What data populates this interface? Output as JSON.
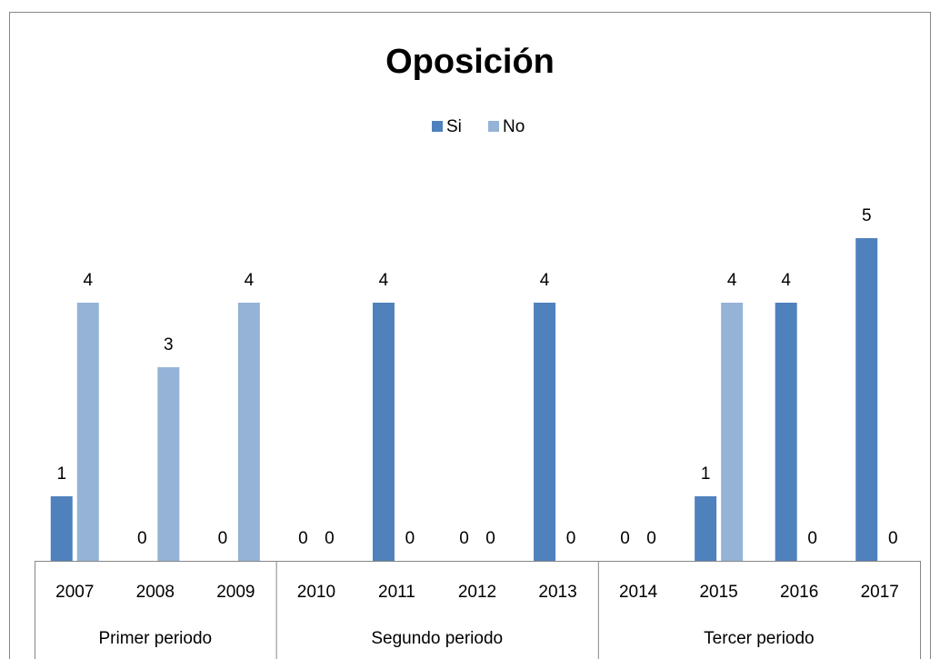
{
  "chart_data": {
    "type": "bar",
    "title": "Oposición",
    "category_groups": [
      {
        "name": "Primer periodo",
        "categories": [
          "2007",
          "2008",
          "2009"
        ]
      },
      {
        "name": "Segundo periodo",
        "categories": [
          "2010",
          "2011",
          "2012",
          "2013"
        ]
      },
      {
        "name": "Tercer periodo",
        "categories": [
          "2014",
          "2015",
          "2016",
          "2017"
        ]
      }
    ],
    "series": [
      {
        "name": "Si",
        "color": "#4f81bd",
        "values": [
          1,
          0,
          0,
          0,
          4,
          0,
          4,
          0,
          1,
          4,
          5
        ]
      },
      {
        "name": "No",
        "color": "#95b3d7",
        "values": [
          4,
          3,
          4,
          0,
          0,
          0,
          0,
          0,
          4,
          0,
          0
        ]
      }
    ],
    "ylim": [
      0,
      6
    ],
    "legend": "top",
    "data_labels": true
  }
}
